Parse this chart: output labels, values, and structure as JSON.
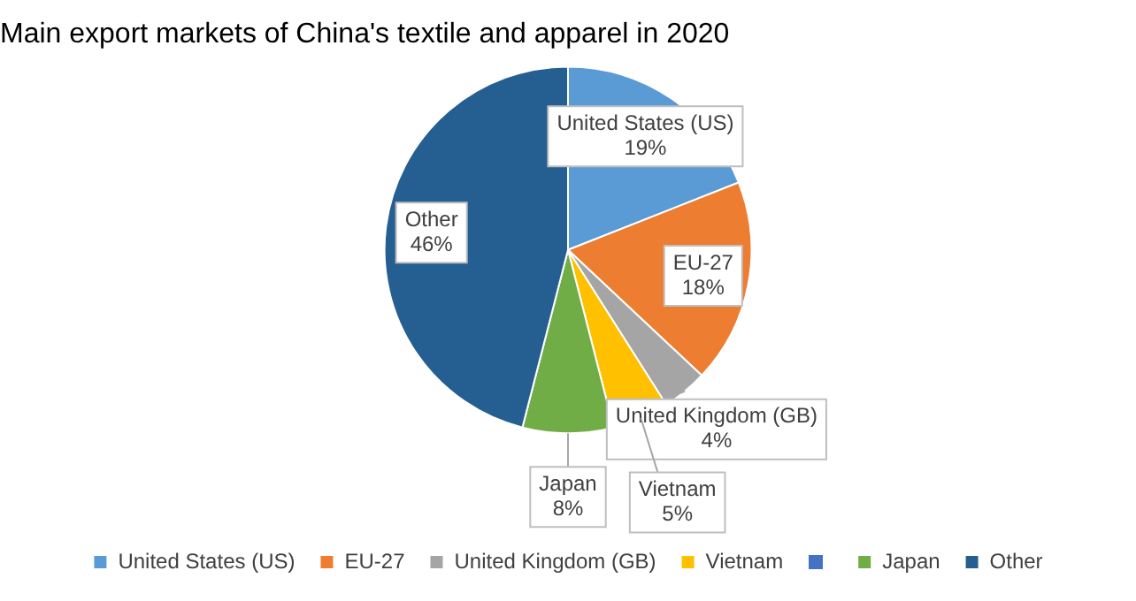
{
  "chart_data": {
    "type": "pie",
    "title": "Main export markets of China's textile and apparel in 2020",
    "categories": [
      "United States (US)",
      "EU-27",
      "United Kingdom (GB)",
      "Vietnam",
      null,
      "Japan",
      "Other"
    ],
    "values": [
      19,
      18,
      4,
      5,
      0,
      8,
      46
    ],
    "value_labels": [
      "19%",
      "18%",
      "4%",
      "5%",
      null,
      "8%",
      "46%"
    ],
    "colors": [
      "#5b9bd5",
      "#ed7d31",
      "#a5a5a5",
      "#ffc000",
      "#4472c4",
      "#70ad47",
      "#255e91"
    ],
    "legend": "bottom"
  }
}
